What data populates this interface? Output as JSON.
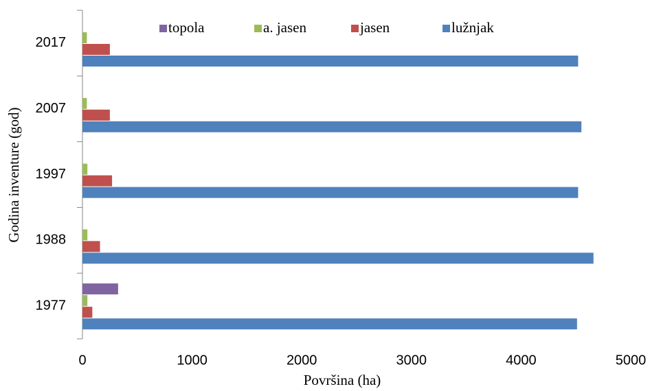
{
  "chart_data": {
    "type": "bar",
    "orientation": "horizontal",
    "x_label": "Površina (ha)",
    "y_label": "Godina inventure (god)",
    "categories": [
      "1977",
      "1988",
      "1997",
      "2007",
      "2017"
    ],
    "series": [
      {
        "name": "topola",
        "color": "#8064a2",
        "values": [
          325,
          null,
          null,
          null,
          null
        ]
      },
      {
        "name": "a. jasen",
        "color": "#9bbb59",
        "values": [
          45,
          45,
          45,
          40,
          40
        ]
      },
      {
        "name": "jasen",
        "color": "#c0504d",
        "values": [
          90,
          160,
          270,
          250,
          250
        ]
      },
      {
        "name": "lužnjak",
        "color": "#4f81bd",
        "values": [
          4510,
          4660,
          4520,
          4550,
          4520
        ]
      }
    ],
    "xlim": [
      0,
      5000
    ],
    "xticks": [
      0,
      1000,
      2000,
      3000,
      4000,
      5000
    ],
    "grid": false,
    "legend": "top"
  }
}
